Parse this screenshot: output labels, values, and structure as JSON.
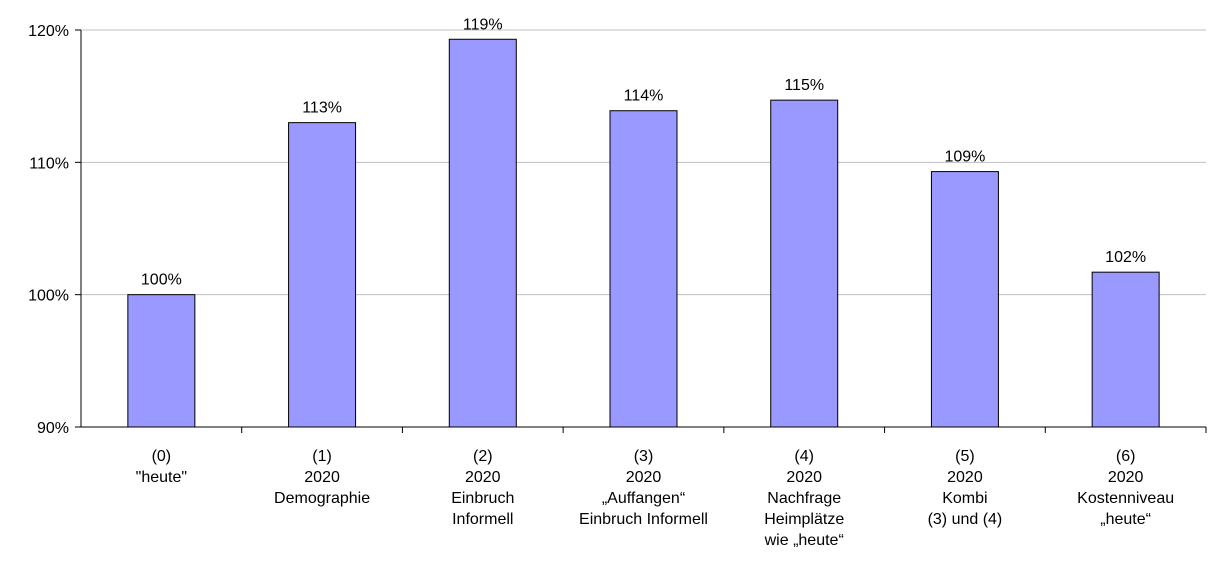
{
  "chart_data": {
    "type": "bar",
    "categories": [
      [
        "(0)",
        "\"heute\""
      ],
      [
        "(1)",
        "2020",
        "Demographie"
      ],
      [
        "(2)",
        "2020",
        "Einbruch",
        "Informell"
      ],
      [
        "(3)",
        "2020",
        "„Auffangen“",
        "Einbruch Informell"
      ],
      [
        "(4)",
        "2020",
        "Nachfrage",
        "Heimplätze",
        "wie „heute“"
      ],
      [
        "(5)",
        "2020",
        "Kombi",
        "(3) und (4)"
      ],
      [
        "(6)",
        "2020",
        "Kostenniveau",
        "„heute“"
      ]
    ],
    "values": [
      100,
      113,
      119.3,
      113.9,
      114.7,
      109.3,
      101.7
    ],
    "data_labels": [
      "100%",
      "113%",
      "119%",
      "114%",
      "115%",
      "109%",
      "102%"
    ],
    "ylim": [
      90,
      120
    ],
    "yticks": [
      90,
      100,
      110,
      120
    ],
    "ytick_labels": [
      "90%",
      "100%",
      "110%",
      "120%"
    ],
    "grid": true,
    "colors": {
      "bar_fill": "#9999ff",
      "bar_stroke": "#000000",
      "grid": "#c0c0c0",
      "axis": "#000000"
    }
  }
}
